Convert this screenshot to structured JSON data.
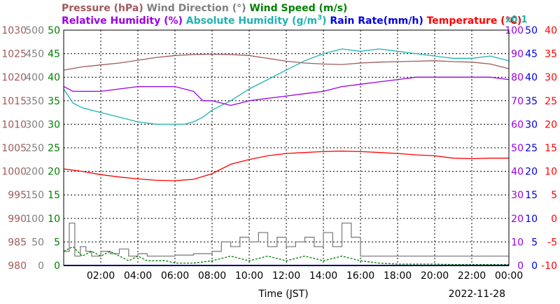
{
  "chart_data": {
    "type": "line",
    "legend": {
      "row1": [
        {
          "key": "pressure",
          "label": "Pressure (hPa)",
          "color": "#a05a5a"
        },
        {
          "key": "wind_direction",
          "label": "Wind Direction (°)",
          "color": "#808080"
        },
        {
          "key": "wind_speed",
          "label": "Wind Speed (m/s)",
          "color": "#008000"
        }
      ],
      "row2": [
        {
          "key": "relative_humidity",
          "label": "Relative Humidity (%)",
          "color": "#9a00e6"
        },
        {
          "key": "absolute_humidity",
          "label": "Absolute Humidity (g/m",
          "sup": "3",
          "tail": ")",
          "color": "#20b2b2"
        },
        {
          "key": "rain_rate",
          "label": "Rain Rate(mm/h)",
          "color": "#0000e0"
        },
        {
          "key": "temperature",
          "label": "Temperature (°C)",
          "color": "#ff0000"
        }
      ],
      "rain_multiplier": "x0.1"
    },
    "x_axis": {
      "label": "Time (JST)",
      "date": "2022-11-28",
      "range_hours": [
        0,
        24
      ],
      "ticks": [
        "02:00",
        "04:00",
        "06:00",
        "08:00",
        "10:00",
        "12:00",
        "14:00",
        "16:00",
        "18:00",
        "20:00",
        "22:00",
        "00:00"
      ]
    },
    "axes": {
      "pressure": {
        "color": "#a05a5a",
        "range": [
          980,
          1030
        ],
        "ticks": [
          "1030",
          "1025",
          "1020",
          "1015",
          "1010",
          "1005",
          "1000",
          "995",
          "990",
          "985",
          "980"
        ]
      },
      "wind_direction": {
        "color": "#808080",
        "range": [
          0,
          500
        ],
        "ticks": [
          "500",
          "450",
          "400",
          "350",
          "300",
          "250",
          "200",
          "150",
          "100",
          "50",
          "0"
        ]
      },
      "wind_speed": {
        "color": "#008000",
        "range": [
          0,
          50
        ],
        "ticks": [
          "50",
          "45",
          "40",
          "35",
          "30",
          "25",
          "20",
          "15",
          "10",
          "5",
          "0"
        ]
      },
      "relative_humidity": {
        "color": "#9a00e6",
        "range": [
          0,
          100
        ],
        "ticks": [
          "100",
          "90",
          "80",
          "70",
          "60",
          "50",
          "40",
          "30",
          "20",
          "10",
          "0"
        ]
      },
      "rain_rate": {
        "color": "#0000e0",
        "range": [
          0,
          50
        ],
        "ticks": [
          "50",
          "45",
          "40",
          "35",
          "30",
          "25",
          "20",
          "15",
          "10",
          "5",
          "0"
        ]
      },
      "temperature": {
        "color": "#ff0000",
        "range": [
          -10,
          40
        ],
        "ticks": [
          "40",
          "35",
          "30",
          "25",
          "20",
          "15",
          "10",
          "5",
          "0",
          "-5",
          "-10"
        ]
      }
    },
    "grid": true,
    "series": [
      {
        "name": "Pressure (hPa)",
        "key": "pressure",
        "axis": "pressure",
        "color": "#a05a5a",
        "x": [
          0,
          1,
          2,
          3,
          4,
          5,
          6,
          7,
          8,
          9,
          10,
          11,
          12,
          13,
          14,
          15,
          16,
          17,
          18,
          19,
          20,
          21,
          22,
          23,
          24
        ],
        "values": [
          1021.5,
          1022.2,
          1022.6,
          1023.0,
          1023.6,
          1024.2,
          1024.6,
          1024.8,
          1024.9,
          1024.8,
          1024.6,
          1024.0,
          1023.4,
          1023.0,
          1022.8,
          1022.7,
          1023.0,
          1023.2,
          1023.3,
          1023.4,
          1023.5,
          1023.3,
          1023.2,
          1022.8,
          1021.8
        ]
      },
      {
        "name": "Absolute Humidity (g/m3)",
        "key": "absolute_humidity",
        "axis": "wind_speed",
        "color": "#20b2b2",
        "x": [
          0,
          0.5,
          1,
          2,
          3,
          4,
          5,
          6,
          6.5,
          7,
          7.5,
          8,
          9,
          10,
          11,
          12,
          13,
          14,
          15,
          16,
          17,
          18,
          19,
          20,
          21,
          22,
          23,
          24
        ],
        "values": [
          37.5,
          34.5,
          33.5,
          32.5,
          31.5,
          30.5,
          30.0,
          30.0,
          30.0,
          30.5,
          31.5,
          33.0,
          35.0,
          37.5,
          39.5,
          41.5,
          43.5,
          45.0,
          46.0,
          45.5,
          46.0,
          45.5,
          45.0,
          44.5,
          44.0,
          44.0,
          44.5,
          43.5
        ]
      },
      {
        "name": "Relative Humidity (%)",
        "key": "relative_humidity",
        "axis": "relative_humidity",
        "color": "#9a00e6",
        "x": [
          0,
          0.5,
          1,
          2,
          3,
          4,
          5,
          6,
          7,
          7.5,
          8,
          9,
          9.5,
          10,
          11,
          12,
          13,
          14,
          15,
          16,
          17,
          18,
          19,
          20,
          21,
          22,
          23,
          24
        ],
        "values": [
          76,
          74,
          74,
          74,
          75,
          76,
          76,
          76,
          74,
          70,
          70,
          68,
          69,
          70,
          71,
          72,
          73,
          74,
          76,
          77,
          78,
          79,
          80,
          80,
          80,
          80,
          80,
          79
        ]
      },
      {
        "name": "Temperature (°C)",
        "key": "temperature",
        "axis": "temperature",
        "color": "#ff0000",
        "x": [
          0,
          1,
          2,
          3,
          4,
          5,
          6,
          7,
          8,
          9,
          10,
          11,
          12,
          13,
          14,
          15,
          16,
          17,
          18,
          19,
          20,
          21,
          22,
          23,
          24
        ],
        "values": [
          10.5,
          10.0,
          9.3,
          8.8,
          8.4,
          8.1,
          8.0,
          8.3,
          9.5,
          11.5,
          12.5,
          13.3,
          13.8,
          14.0,
          14.2,
          14.3,
          14.2,
          14.0,
          13.8,
          13.5,
          13.3,
          12.8,
          12.7,
          12.8,
          12.8
        ]
      },
      {
        "name": "Wind Direction (°)",
        "key": "wind_direction",
        "axis": "wind_direction",
        "color": "#808080",
        "x": [
          0,
          0.3,
          0.6,
          0.9,
          1.2,
          1.5,
          2,
          2.5,
          3,
          3.5,
          4,
          4.5,
          5,
          6,
          7,
          8,
          8.5,
          9,
          9.5,
          10,
          10.5,
          11,
          11.5,
          12,
          12.5,
          13,
          13.5,
          14,
          14.5,
          15,
          15.5,
          16,
          17,
          18,
          19,
          20,
          21,
          22,
          23,
          24
        ],
        "values": [
          30,
          90,
          20,
          40,
          30,
          20,
          30,
          25,
          35,
          20,
          25,
          20,
          20,
          22,
          25,
          30,
          50,
          40,
          60,
          50,
          70,
          40,
          60,
          40,
          50,
          60,
          40,
          70,
          40,
          90,
          60,
          20,
          20,
          20,
          20,
          20,
          20,
          20,
          20,
          20
        ]
      },
      {
        "name": "Wind Speed (m/s)",
        "key": "wind_speed",
        "axis": "wind_speed",
        "color": "#008000",
        "x": [
          0,
          0.5,
          1,
          1.5,
          2,
          2.5,
          3,
          3.5,
          4,
          4.5,
          5,
          5.5,
          6,
          7,
          8,
          9,
          10,
          11,
          12,
          13,
          14,
          15,
          16,
          17,
          18,
          19,
          20,
          21,
          22,
          23,
          24
        ],
        "values": [
          3,
          4,
          2,
          3,
          2,
          3,
          2,
          1,
          2,
          1,
          1,
          1,
          0.5,
          0.5,
          1,
          2,
          1,
          2,
          1,
          2,
          1,
          2,
          1,
          0.5,
          0.3,
          0.3,
          0.3,
          0.2,
          0.2,
          0.2,
          0.2
        ]
      },
      {
        "name": "Rain Rate(mm/h)",
        "key": "rain_rate",
        "axis": "rain_rate",
        "color": "#0000e0",
        "x": [
          0,
          24
        ],
        "values": [
          0,
          0
        ]
      }
    ]
  }
}
